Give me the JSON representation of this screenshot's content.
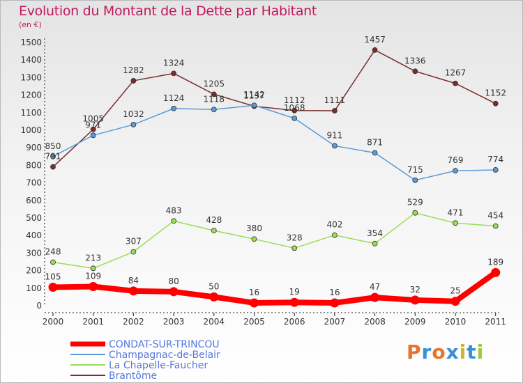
{
  "title": "Evolution du Montant de la Dette par Habitant",
  "unit": "(en €)",
  "logo": "Proxiti",
  "chart_data": {
    "type": "line",
    "x": [
      "2000",
      "2001",
      "2002",
      "2003",
      "2004",
      "2005",
      "2006",
      "2007",
      "2008",
      "2009",
      "2010",
      "2011"
    ],
    "ylim": [
      0,
      1500
    ],
    "yticks": [
      0,
      100,
      200,
      300,
      400,
      500,
      600,
      700,
      800,
      900,
      1000,
      1100,
      1200,
      1300,
      1400,
      1500
    ],
    "grid": false,
    "legend_position": "bottom-left",
    "series": [
      {
        "name": "CONDAT-SUR-TRINCOU",
        "color": "#ff0000",
        "values": [
          105,
          109,
          84,
          80,
          50,
          16,
          19,
          16,
          47,
          32,
          25,
          189
        ]
      },
      {
        "name": "Champagnac-de-Belair",
        "color": "#5b9bd5",
        "values": [
          850,
          971,
          1032,
          1124,
          1118,
          1142,
          1068,
          911,
          871,
          715,
          769,
          774
        ]
      },
      {
        "name": "La Chapelle-Faucher",
        "color": "#99dd55",
        "values": [
          248,
          213,
          307,
          483,
          428,
          380,
          328,
          402,
          354,
          529,
          471,
          454
        ]
      },
      {
        "name": "Brantôme",
        "color": "#7b2c2c",
        "values": [
          791,
          1005,
          1282,
          1324,
          1205,
          1137,
          1112,
          1111,
          1457,
          1336,
          1267,
          1152
        ]
      }
    ]
  }
}
